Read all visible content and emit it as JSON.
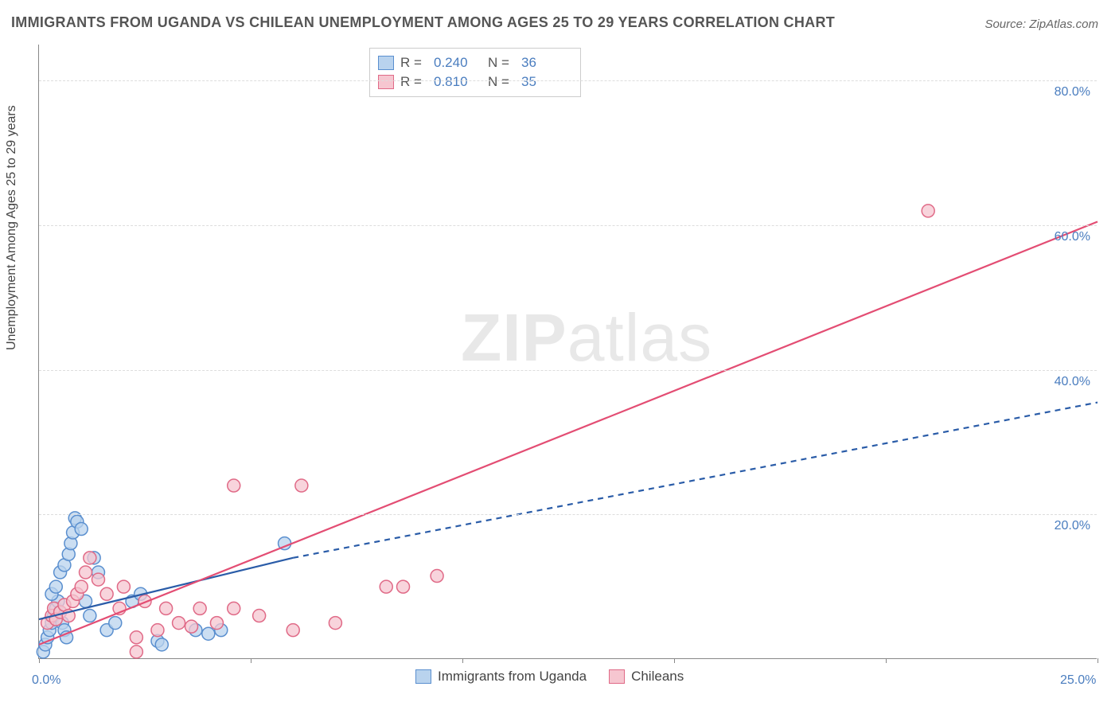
{
  "title": "IMMIGRANTS FROM UGANDA VS CHILEAN UNEMPLOYMENT AMONG AGES 25 TO 29 YEARS CORRELATION CHART",
  "source": "Source: ZipAtlas.com",
  "y_axis_label": "Unemployment Among Ages 25 to 29 years",
  "watermark": {
    "bold": "ZIP",
    "rest": "atlas"
  },
  "chart": {
    "type": "scatter",
    "background_color": "#ffffff",
    "grid_color": "#dddddd",
    "axis_color": "#888888",
    "label_color": "#4a7dbf",
    "xlim": [
      0,
      25
    ],
    "ylim": [
      0,
      85
    ],
    "x_ticks": [
      0,
      5,
      10,
      15,
      20,
      25
    ],
    "x_tick_labels": [
      "0.0%",
      "",
      "",
      "",
      "",
      "25.0%"
    ],
    "y_ticks": [
      20,
      40,
      60,
      80
    ],
    "y_tick_labels": [
      "20.0%",
      "40.0%",
      "60.0%",
      "80.0%"
    ],
    "marker_radius": 8,
    "marker_stroke_width": 1.5,
    "series": [
      {
        "name": "Immigrants from Uganda",
        "color_fill": "#b9d3ee",
        "color_stroke": "#5a8fcf",
        "r_value": "0.240",
        "n_value": "36",
        "trend_line": {
          "solid": {
            "x1": 0,
            "y1": 5.5,
            "x2": 6.0,
            "y2": 14.0
          },
          "dashed": {
            "x1": 6.0,
            "y1": 14.0,
            "x2": 25.0,
            "y2": 35.5
          },
          "color": "#2a5ca8",
          "width": 2.2,
          "dash": "7,6"
        },
        "points": [
          {
            "x": 0.1,
            "y": 1.0
          },
          {
            "x": 0.15,
            "y": 2.0
          },
          {
            "x": 0.2,
            "y": 3.0
          },
          {
            "x": 0.25,
            "y": 4.0
          },
          {
            "x": 0.3,
            "y": 5.0
          },
          {
            "x": 0.35,
            "y": 6.0
          },
          {
            "x": 0.4,
            "y": 7.0
          },
          {
            "x": 0.45,
            "y": 8.0
          },
          {
            "x": 0.5,
            "y": 6.5
          },
          {
            "x": 0.55,
            "y": 5.0
          },
          {
            "x": 0.6,
            "y": 4.0
          },
          {
            "x": 0.65,
            "y": 3.0
          },
          {
            "x": 0.3,
            "y": 9.0
          },
          {
            "x": 0.4,
            "y": 10.0
          },
          {
            "x": 0.5,
            "y": 12.0
          },
          {
            "x": 0.6,
            "y": 13.0
          },
          {
            "x": 0.7,
            "y": 14.5
          },
          {
            "x": 0.75,
            "y": 16.0
          },
          {
            "x": 0.8,
            "y": 17.5
          },
          {
            "x": 0.85,
            "y": 19.5
          },
          {
            "x": 0.9,
            "y": 19.0
          },
          {
            "x": 1.0,
            "y": 18.0
          },
          {
            "x": 1.1,
            "y": 8.0
          },
          {
            "x": 1.2,
            "y": 6.0
          },
          {
            "x": 1.3,
            "y": 14.0
          },
          {
            "x": 1.4,
            "y": 12.0
          },
          {
            "x": 1.6,
            "y": 4.0
          },
          {
            "x": 1.8,
            "y": 5.0
          },
          {
            "x": 2.2,
            "y": 8.0
          },
          {
            "x": 2.4,
            "y": 9.0
          },
          {
            "x": 2.8,
            "y": 2.5
          },
          {
            "x": 2.9,
            "y": 2.0
          },
          {
            "x": 3.7,
            "y": 4.0
          },
          {
            "x": 4.0,
            "y": 3.5
          },
          {
            "x": 4.3,
            "y": 4.0
          },
          {
            "x": 5.8,
            "y": 16.0
          }
        ]
      },
      {
        "name": "Chileans",
        "color_fill": "#f6c6d0",
        "color_stroke": "#e06a87",
        "r_value": "0.810",
        "n_value": "35",
        "trend_line": {
          "solid": {
            "x1": 0,
            "y1": 2.0,
            "x2": 25.0,
            "y2": 60.5
          },
          "color": "#e34d73",
          "width": 2.2
        },
        "points": [
          {
            "x": 0.2,
            "y": 5.0
          },
          {
            "x": 0.3,
            "y": 6.0
          },
          {
            "x": 0.35,
            "y": 7.0
          },
          {
            "x": 0.4,
            "y": 5.5
          },
          {
            "x": 0.5,
            "y": 6.5
          },
          {
            "x": 0.6,
            "y": 7.5
          },
          {
            "x": 0.7,
            "y": 6.0
          },
          {
            "x": 0.8,
            "y": 8.0
          },
          {
            "x": 0.9,
            "y": 9.0
          },
          {
            "x": 1.0,
            "y": 10.0
          },
          {
            "x": 1.1,
            "y": 12.0
          },
          {
            "x": 1.2,
            "y": 14.0
          },
          {
            "x": 1.4,
            "y": 11.0
          },
          {
            "x": 1.6,
            "y": 9.0
          },
          {
            "x": 1.9,
            "y": 7.0
          },
          {
            "x": 2.0,
            "y": 10.0
          },
          {
            "x": 2.3,
            "y": 3.0
          },
          {
            "x": 2.5,
            "y": 8.0
          },
          {
            "x": 2.8,
            "y": 4.0
          },
          {
            "x": 3.0,
            "y": 7.0
          },
          {
            "x": 3.3,
            "y": 5.0
          },
          {
            "x": 3.6,
            "y": 4.5
          },
          {
            "x": 3.8,
            "y": 7.0
          },
          {
            "x": 4.2,
            "y": 5.0
          },
          {
            "x": 4.6,
            "y": 7.0
          },
          {
            "x": 4.6,
            "y": 24.0
          },
          {
            "x": 5.2,
            "y": 6.0
          },
          {
            "x": 6.0,
            "y": 4.0
          },
          {
            "x": 6.2,
            "y": 24.0
          },
          {
            "x": 7.0,
            "y": 5.0
          },
          {
            "x": 8.2,
            "y": 10.0
          },
          {
            "x": 8.6,
            "y": 10.0
          },
          {
            "x": 9.4,
            "y": 11.5
          },
          {
            "x": 2.3,
            "y": 1.0
          },
          {
            "x": 21.0,
            "y": 62.0
          }
        ]
      }
    ]
  },
  "legend_top_labels": {
    "r": "R =",
    "n": "N ="
  },
  "legend_bottom": [
    {
      "label": "Immigrants from Uganda",
      "fill": "#b9d3ee",
      "stroke": "#5a8fcf"
    },
    {
      "label": "Chileans",
      "fill": "#f6c6d0",
      "stroke": "#e06a87"
    }
  ]
}
